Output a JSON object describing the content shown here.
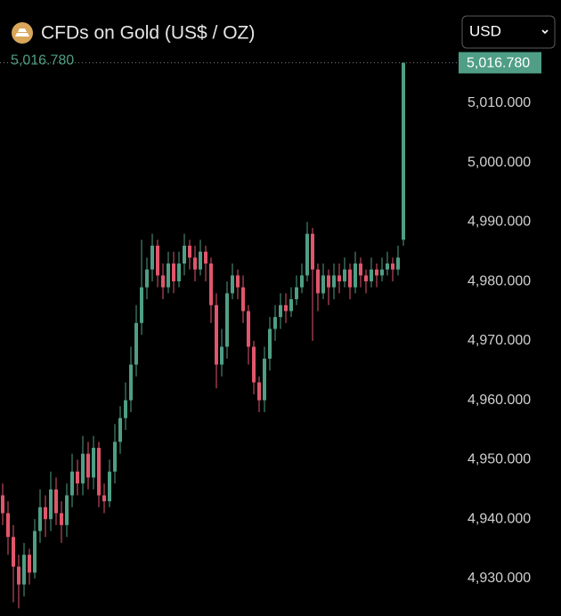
{
  "chart_data": {
    "type": "candlestick",
    "title": "CFDs on Gold (US$ / OZ)",
    "currency": "USD",
    "last_price": {
      "value": 5016.78,
      "label": "5,016.780"
    },
    "up_color": "#4f9e85",
    "down_color": "#e0566b",
    "ylim": [
      4923.7,
      5019.1
    ],
    "yticks": [
      {
        "value": 4930,
        "label": "4,930.000"
      },
      {
        "value": 4940,
        "label": "4,940.000"
      },
      {
        "value": 4950,
        "label": "4,950.000"
      },
      {
        "value": 4960,
        "label": "4,960.000"
      },
      {
        "value": 4970,
        "label": "4,970.000"
      },
      {
        "value": 4980,
        "label": "4,980.000"
      },
      {
        "value": 4990,
        "label": "4,990.000"
      },
      {
        "value": 5000,
        "label": "5,000.000"
      },
      {
        "value": 5010,
        "label": "5,010.000"
      }
    ],
    "open": [
      4944,
      4941,
      4937,
      4932,
      4929,
      4934,
      4931,
      4938,
      4942,
      4940,
      4945,
      4941,
      4939,
      4944,
      4948,
      4946,
      4951,
      4947,
      4952,
      4944,
      4943,
      4948,
      4953,
      4957,
      4960,
      4966,
      4973,
      4979,
      4982,
      4986,
      4981,
      4979,
      4983,
      4980,
      4983,
      4986,
      4984,
      4982,
      4985,
      4983,
      4976,
      4966,
      4969,
      4978,
      4981,
      4979,
      4975,
      4969,
      4963,
      4960,
      4967,
      4972,
      4974,
      4976,
      4975,
      4977,
      4979,
      4981,
      4988,
      4982,
      4978,
      4981,
      4979,
      4981,
      4980,
      4982,
      4979,
      4983,
      4981,
      4980,
      4982,
      4981,
      4982,
      4983,
      4982,
      4987
    ],
    "high": [
      4946,
      4943,
      4939,
      4934,
      4936,
      4935,
      4940,
      4945,
      4944,
      4948,
      4947,
      4943,
      4946,
      4951,
      4950,
      4954,
      4953,
      4954,
      4953,
      4946,
      4950,
      4956,
      4959,
      4963,
      4969,
      4976,
      4987,
      4984,
      4988,
      4987,
      4983,
      4985,
      4985,
      4985,
      4988,
      4987,
      4986,
      4987,
      4986,
      4984,
      4978,
      4972,
      4980,
      4983,
      4982,
      4981,
      4976,
      4970,
      4964,
      4969,
      4974,
      4976,
      4978,
      4978,
      4979,
      4981,
      4983,
      4990,
      4989,
      4983,
      4983,
      4982,
      4983,
      4983,
      4984,
      4983,
      4985,
      4984,
      4982,
      4984,
      4983,
      4984,
      4985,
      4984,
      4986,
      5016.78
    ],
    "low": [
      4939,
      4934,
      4926,
      4925,
      4927,
      4929,
      4930,
      4936,
      4937,
      4938,
      4939,
      4936,
      4937,
      4942,
      4944,
      4944,
      4945,
      4945,
      4942,
      4941,
      4942,
      4946,
      4951,
      4955,
      4958,
      4964,
      4971,
      4977,
      4980,
      4979,
      4977,
      4978,
      4978,
      4979,
      4981,
      4982,
      4980,
      4981,
      4980,
      4973,
      4962,
      4964,
      4967,
      4977,
      4977,
      4973,
      4966,
      4961,
      4958,
      4958,
      4965,
      4970,
      4972,
      4973,
      4974,
      4976,
      4978,
      4980,
      4970,
      4975,
      4977,
      4976,
      4977,
      4978,
      4979,
      4977,
      4978,
      4979,
      4978,
      4979,
      4979,
      4980,
      4981,
      4980,
      4981,
      4986
    ],
    "close": [
      4941,
      4937,
      4932,
      4929,
      4934,
      4931,
      4938,
      4942,
      4940,
      4945,
      4941,
      4939,
      4944,
      4948,
      4946,
      4951,
      4947,
      4952,
      4944,
      4943,
      4948,
      4953,
      4957,
      4960,
      4966,
      4973,
      4979,
      4982,
      4986,
      4981,
      4979,
      4983,
      4980,
      4983,
      4986,
      4984,
      4982,
      4985,
      4983,
      4976,
      4966,
      4969,
      4978,
      4981,
      4979,
      4975,
      4969,
      4963,
      4960,
      4967,
      4972,
      4974,
      4976,
      4975,
      4977,
      4979,
      4981,
      4988,
      4982,
      4978,
      4981,
      4979,
      4981,
      4980,
      4982,
      4979,
      4983,
      4981,
      4980,
      4982,
      4981,
      4982,
      4983,
      4982,
      4984,
      5016.78
    ]
  }
}
